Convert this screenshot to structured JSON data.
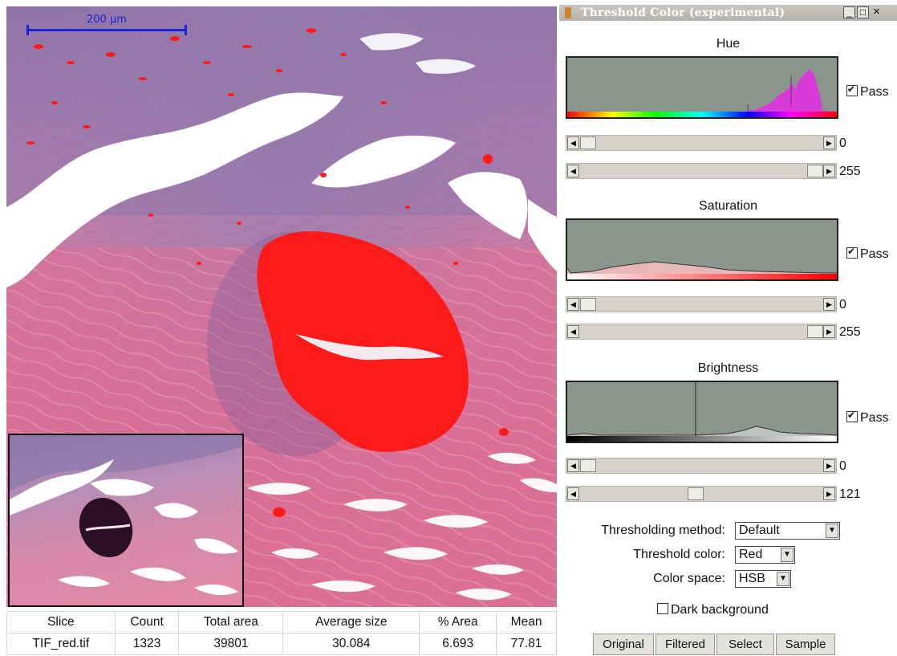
{
  "image": {
    "scalebar_label": "200 µm"
  },
  "results": {
    "headers": [
      "Slice",
      "Count",
      "Total area",
      "Average size",
      "% Area",
      "Mean"
    ],
    "row": [
      "TIF_red.tif",
      "1323",
      "39801",
      "30.084",
      "6.693",
      "77.81"
    ]
  },
  "window": {
    "title": "Threshold Color (experimental)",
    "controls": {
      "minimize": "_",
      "maximize": "□",
      "close": "×"
    }
  },
  "sections": {
    "hue": {
      "title": "Hue",
      "pass_label": "Pass",
      "pass_checked": true,
      "min_value": "0",
      "max_value": "255"
    },
    "saturation": {
      "title": "Saturation",
      "pass_label": "Pass",
      "pass_checked": true,
      "min_value": "0",
      "max_value": "255"
    },
    "brightness": {
      "title": "Brightness",
      "pass_label": "Pass",
      "pass_checked": true,
      "min_value": "0",
      "max_value": "121"
    }
  },
  "settings": {
    "method_label": "Thresholding method:",
    "method_value": "Default",
    "color_label": "Threshold color:",
    "color_value": "Red",
    "space_label": "Color space:",
    "space_value": "HSB",
    "dark_background_label": "Dark background",
    "dark_background_checked": false
  },
  "buttons": {
    "original": "Original",
    "filtered": "Filtered",
    "select": "Select",
    "sample": "Sample"
  },
  "colors": {
    "threshold_overlay": "#ff1a1a",
    "histogram_bg": "#8a968d",
    "scalebar": "#1d25d8"
  }
}
